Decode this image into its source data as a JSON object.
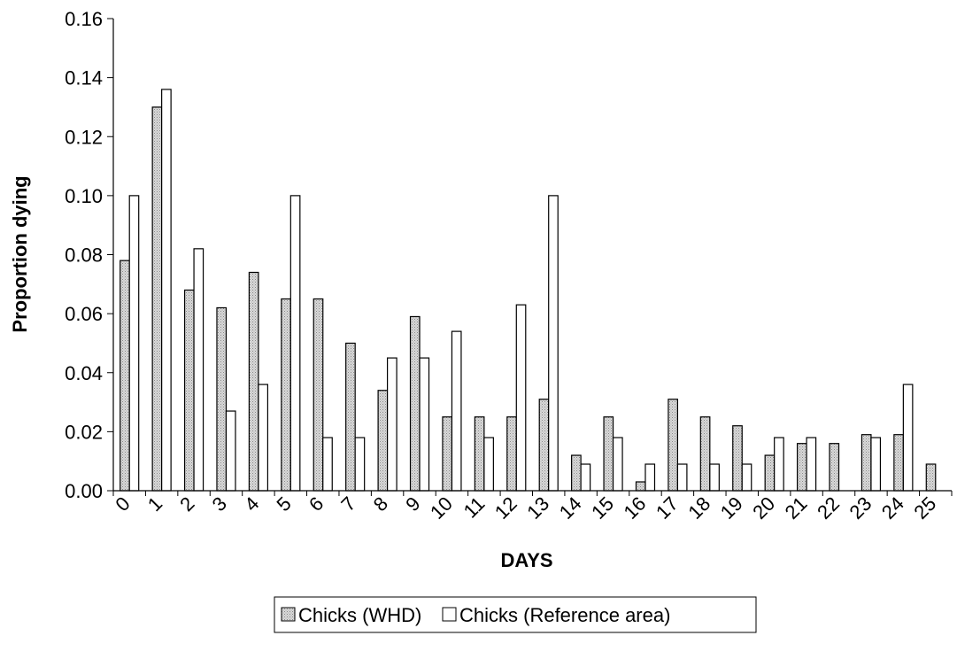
{
  "chart_data": {
    "type": "bar",
    "title": "",
    "xlabel": "DAYS",
    "ylabel": "Proportion dying",
    "ylim": [
      0,
      0.16
    ],
    "yticks": [
      "0.00",
      "0.02",
      "0.04",
      "0.06",
      "0.08",
      "0.10",
      "0.12",
      "0.14",
      "0.16"
    ],
    "categories": [
      "0",
      "1",
      "2",
      "3",
      "4",
      "5",
      "6",
      "7",
      "8",
      "9",
      "10",
      "11",
      "12",
      "13",
      "14",
      "15",
      "16",
      "17",
      "18",
      "19",
      "20",
      "21",
      "22",
      "23",
      "24",
      "25"
    ],
    "series": [
      {
        "name": "Chicks (WHD)",
        "values": [
          0.078,
          0.13,
          0.068,
          0.062,
          0.074,
          0.065,
          0.065,
          0.05,
          0.034,
          0.059,
          0.025,
          0.025,
          0.025,
          0.031,
          0.012,
          0.025,
          0.003,
          0.031,
          0.025,
          0.022,
          0.012,
          0.016,
          0.016,
          0.019,
          0.019,
          0.009
        ]
      },
      {
        "name": "Chicks (Reference area)",
        "values": [
          0.1,
          0.136,
          0.082,
          0.027,
          0.036,
          0.1,
          0.018,
          0.018,
          0.045,
          0.045,
          0.054,
          0.018,
          0.063,
          0.1,
          0.009,
          0.018,
          0.009,
          0.009,
          0.009,
          0.009,
          0.018,
          0.018,
          0,
          0.018,
          0.036,
          0
        ]
      }
    ],
    "legend_position": "bottom",
    "grid": false
  },
  "colors": {
    "series_whd": "#c8c8c8",
    "series_ref": "#ffffff",
    "stroke": "#000000"
  }
}
